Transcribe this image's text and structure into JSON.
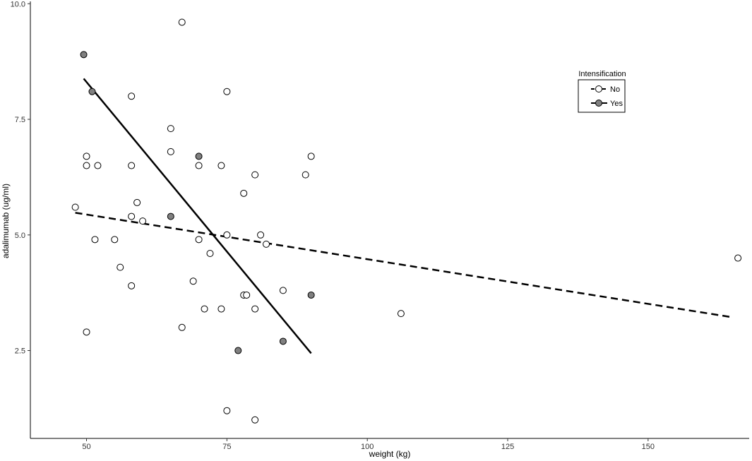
{
  "chart_data": {
    "type": "scatter",
    "xlabel": "weight (kg)",
    "ylabel": "adalimumab (ug/ml)",
    "xlim": [
      40,
      168
    ],
    "ylim": [
      0.6,
      10.05
    ],
    "x_ticks": [
      50,
      75,
      100,
      125,
      150
    ],
    "y_ticks": [
      2.5,
      5.0,
      7.5,
      10.0
    ],
    "x_tick_labels": [
      "50",
      "75",
      "100",
      "125",
      "150"
    ],
    "y_tick_labels": [
      "2.5",
      "5.0",
      "7.5",
      "10.0"
    ],
    "grid": false,
    "legend": {
      "title": "Intensification",
      "position": "top-right",
      "entries": [
        {
          "label": "No",
          "fill": "#ffffff",
          "line": "dashed"
        },
        {
          "label": "Yes",
          "fill": "#808080",
          "line": "solid"
        }
      ]
    },
    "series": [
      {
        "name": "No",
        "fill": "#ffffff",
        "points": [
          [
            48,
            5.6
          ],
          [
            50,
            6.7
          ],
          [
            50,
            6.5
          ],
          [
            50,
            2.9
          ],
          [
            51.5,
            4.9
          ],
          [
            52,
            6.5
          ],
          [
            55,
            4.9
          ],
          [
            56,
            4.3
          ],
          [
            58,
            8.0
          ],
          [
            58,
            6.5
          ],
          [
            58,
            5.4
          ],
          [
            58,
            3.9
          ],
          [
            59,
            5.7
          ],
          [
            60,
            5.3
          ],
          [
            65,
            7.3
          ],
          [
            65,
            6.8
          ],
          [
            67,
            9.6
          ],
          [
            67,
            3.0
          ],
          [
            69,
            4.0
          ],
          [
            70,
            6.5
          ],
          [
            70,
            4.9
          ],
          [
            71,
            3.4
          ],
          [
            72,
            4.6
          ],
          [
            74,
            6.5
          ],
          [
            74,
            3.4
          ],
          [
            75,
            8.1
          ],
          [
            75,
            5.0
          ],
          [
            75,
            1.2
          ],
          [
            78,
            5.9
          ],
          [
            78,
            3.7
          ],
          [
            78.5,
            3.7
          ],
          [
            80,
            6.3
          ],
          [
            80,
            3.4
          ],
          [
            80,
            1.0
          ],
          [
            81,
            5.0
          ],
          [
            82,
            4.8
          ],
          [
            85,
            3.8
          ],
          [
            89,
            6.3
          ],
          [
            90,
            6.7
          ],
          [
            106,
            3.3
          ],
          [
            166,
            4.5
          ]
        ],
        "fit_line": {
          "x": [
            48,
            165
          ],
          "y": [
            5.48,
            3.22
          ],
          "style": "dashed"
        }
      },
      {
        "name": "Yes",
        "fill": "#808080",
        "points": [
          [
            49.5,
            8.9
          ],
          [
            51,
            8.1
          ],
          [
            65,
            5.4
          ],
          [
            70,
            6.7
          ],
          [
            77,
            2.5
          ],
          [
            85,
            2.7
          ],
          [
            90,
            3.7
          ]
        ],
        "fit_line": {
          "x": [
            49.5,
            90
          ],
          "y": [
            8.38,
            2.44
          ],
          "style": "solid"
        }
      }
    ]
  }
}
